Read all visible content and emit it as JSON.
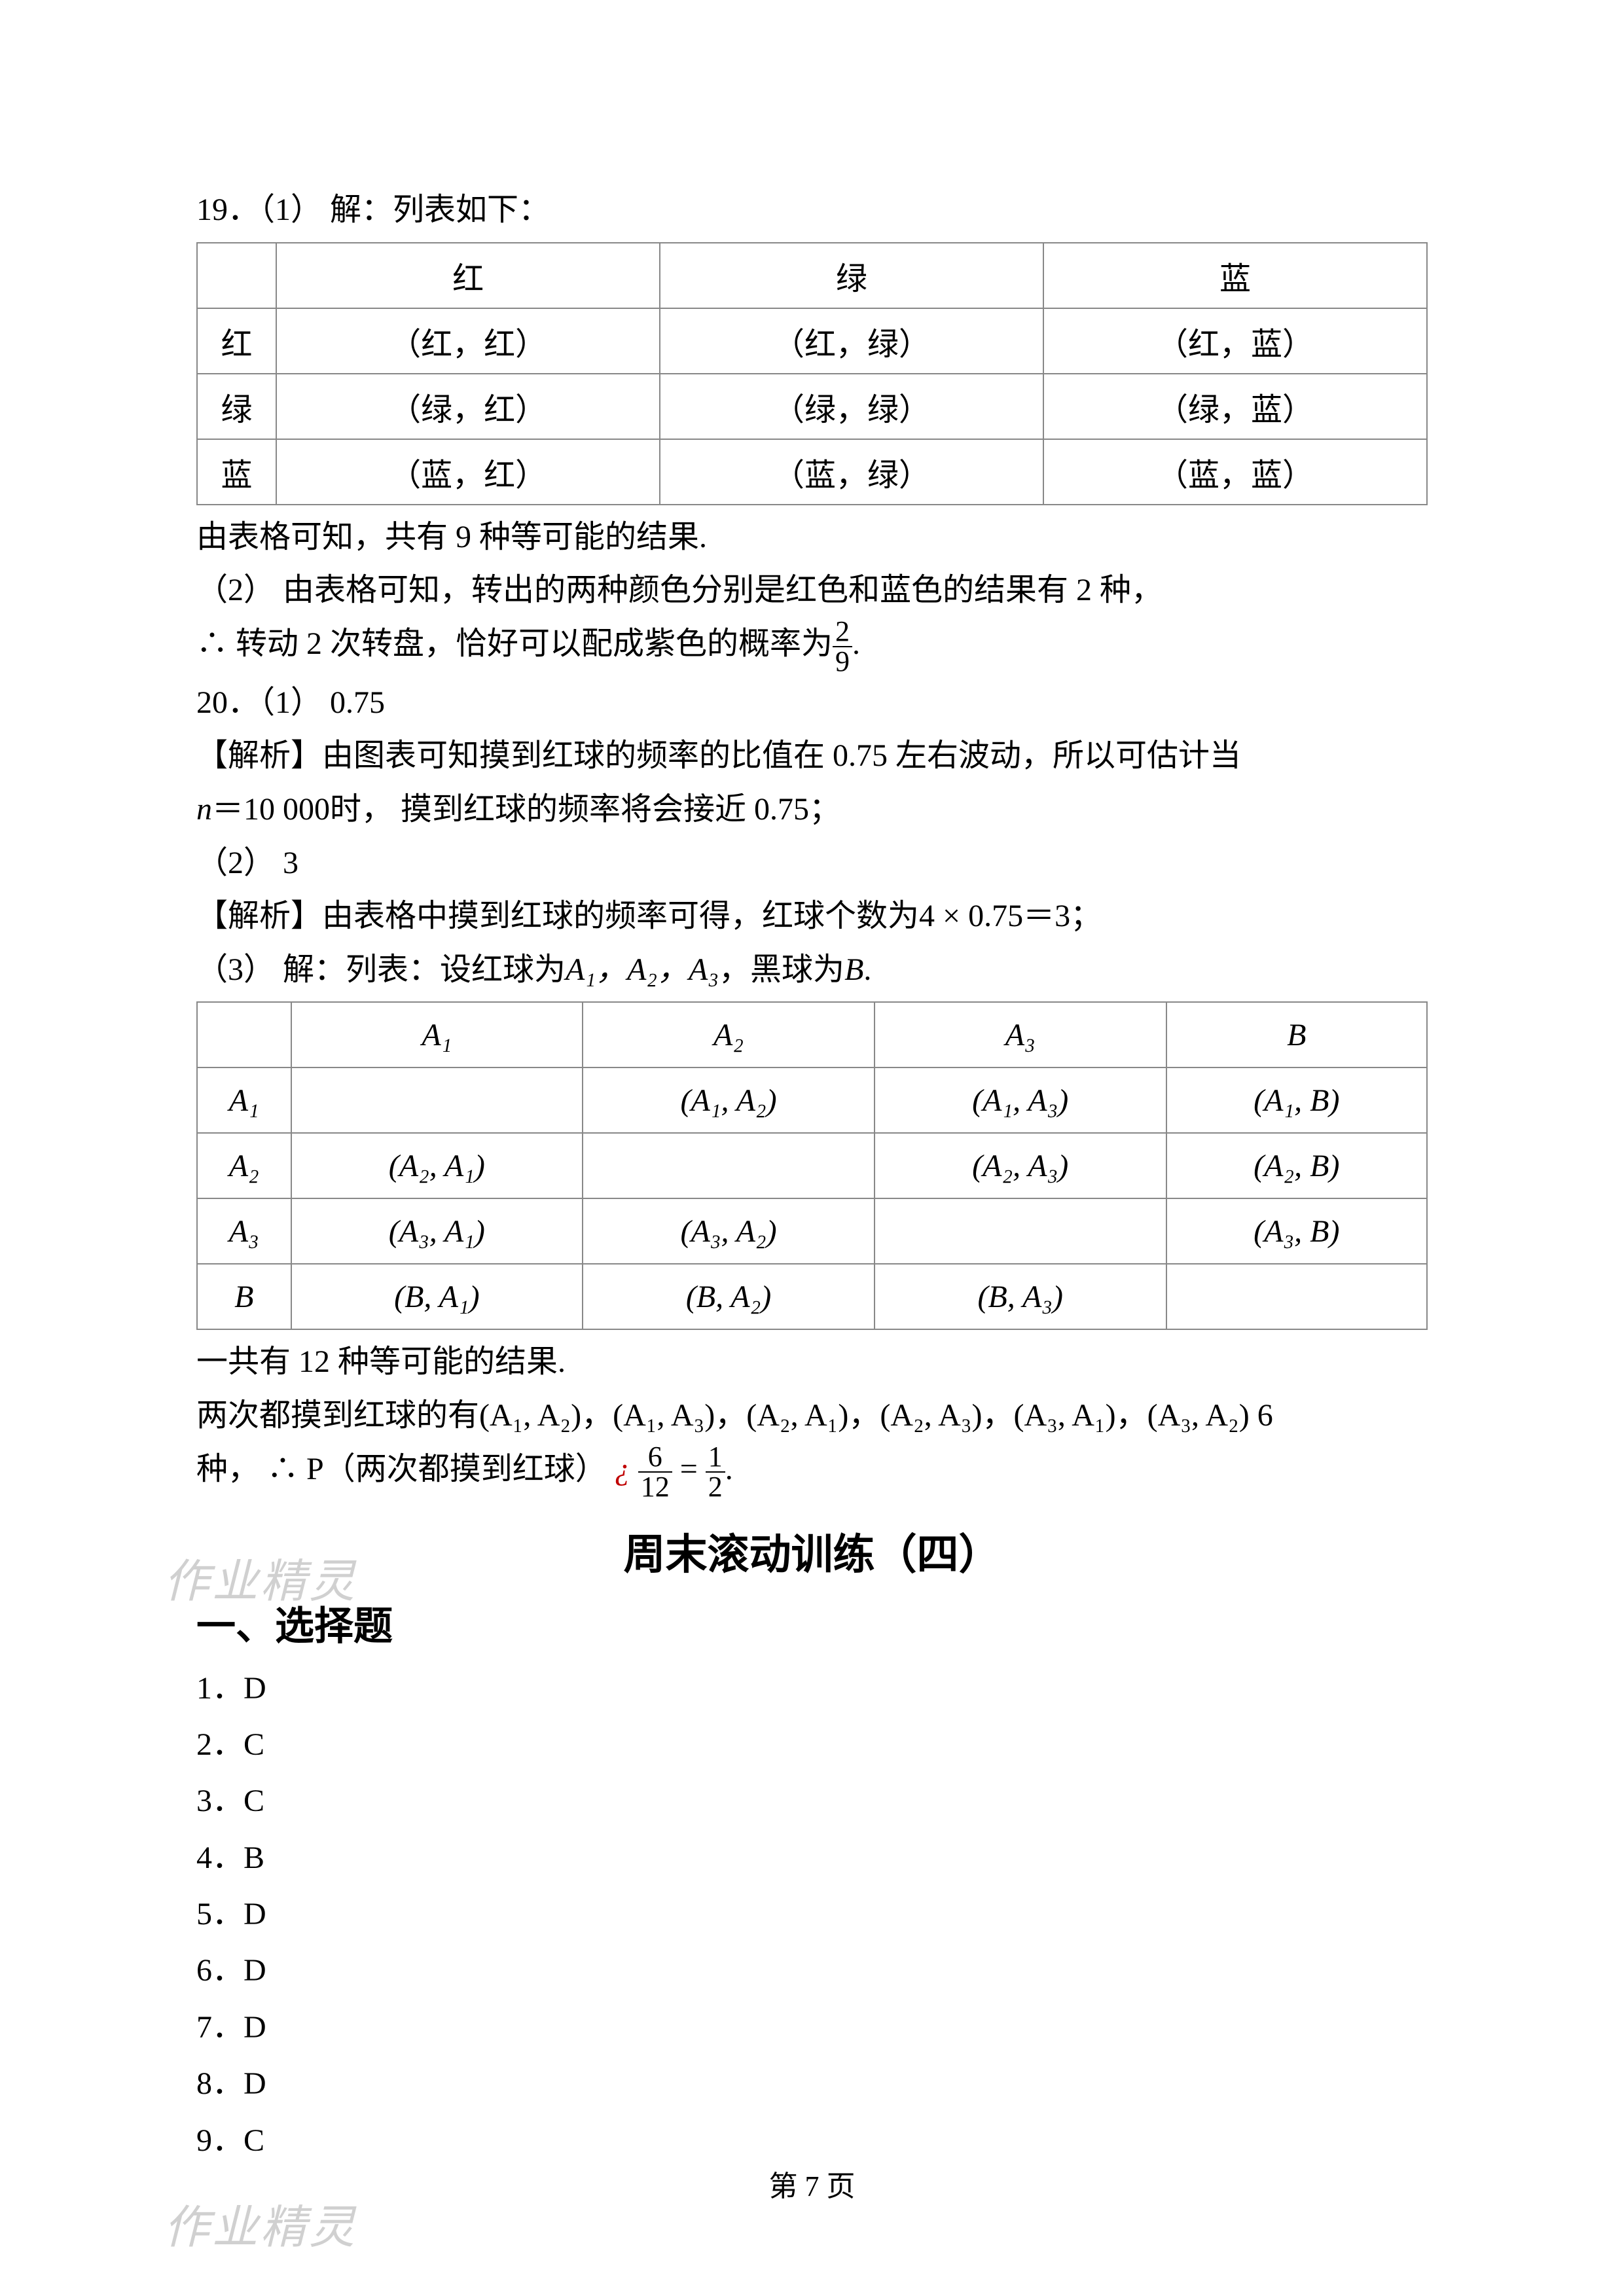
{
  "q19": {
    "lead": "19．（1） 解：列表如下：",
    "table": {
      "headers": [
        "",
        "红",
        "绿",
        "蓝"
      ],
      "rows": [
        [
          "红",
          "（红，红）",
          "（红，绿）",
          "（红，蓝）"
        ],
        [
          "绿",
          "（绿，红）",
          "（绿，绿）",
          "（绿，蓝）"
        ],
        [
          "蓝",
          "（蓝，红）",
          "（蓝，绿）",
          "（蓝，蓝）"
        ]
      ]
    },
    "after1": "由表格可知，共有 9 种等可能的结果.",
    "after2": "（2） 由表格可知，转出的两种颜色分别是红色和蓝色的结果有 2 种，",
    "after3_pre": "∴ 转动 2 次转盘，恰好可以配成紫色的概率为",
    "after3_frac_num": "2",
    "after3_frac_den": "9",
    "after3_post": "."
  },
  "q20": {
    "l1": "20．（1） 0.75",
    "l2": "【解析】由图表可知摸到红球的频率的比值在 0.75 左右波动，所以可估计当",
    "l3_pre": "",
    "l3_n": "n",
    "l3_post": "＝10 000时， 摸到红球的频率将会接近 0.75；",
    "l4": "（2） 3",
    "l5": "【解析】由表格中摸到红球的频率可得，红球个数为4 × 0.75＝3；",
    "l6_pre": "（3） 解：列表：设红球为",
    "l6_seq": "A₁，A₂，A₃",
    "l6_post": "，黑球为",
    "l6_B": "B",
    "l6_end": ".",
    "table": {
      "headers": [
        "",
        "A₁",
        "A₂",
        "A₃",
        "B"
      ],
      "rows": [
        [
          "A₁",
          "",
          "(A₁, A₂)",
          "(A₁, A₃)",
          "(A₁, B)"
        ],
        [
          "A₂",
          "(A₂, A₁)",
          "",
          "(A₂, A₃)",
          "(A₂, B)"
        ],
        [
          "A₃",
          "(A₃, A₁)",
          "(A₃, A₂)",
          "",
          "(A₃, B)"
        ],
        [
          "B",
          "(B, A₁)",
          "(B, A₂)",
          "(B, A₃)",
          ""
        ]
      ]
    },
    "after1": "一共有 12 种等可能的结果.",
    "after2": "两次都摸到红球的有(A₁, A₂)，(A₁, A₃)，(A₂, A₁)，(A₂, A₃)，(A₃, A₁)，(A₃, A₂) 6",
    "after3_pre": "种， ∴ P（两次都摸到红球）",
    "after3_i": "¿",
    "after3_f1_num": "6",
    "after3_f1_den": "12",
    "after3_eq": "=",
    "after3_f2_num": "1",
    "after3_f2_den": "2",
    "after3_post": "."
  },
  "title": "周末滚动训练（四）",
  "section1": "一、选择题",
  "answers": [
    "1．D",
    "2．C",
    "3．C",
    "4．B",
    "5．D",
    "6．D",
    "7．D",
    "8．D",
    "9．C"
  ],
  "page": "第 7 页",
  "watermark": "作业精灵"
}
